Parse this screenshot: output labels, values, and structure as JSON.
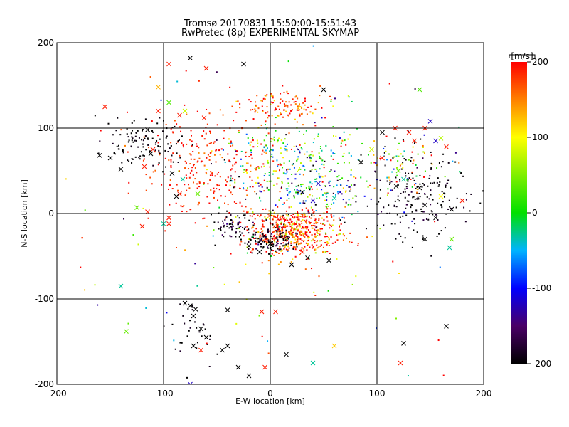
{
  "chart_data": {
    "type": "scatter",
    "title": "Tromsø 20170831 15:50:00-15:51:43",
    "subtitle": "RwPretec (8p) EXPERIMENTAL SKYMAP",
    "xlabel": "E-W location [km]",
    "ylabel": "N-S location [km]",
    "xlim": [
      -200,
      200
    ],
    "ylim": [
      -200,
      200
    ],
    "xticks": [
      "-200",
      "-100",
      "0",
      "100",
      "200"
    ],
    "yticks": [
      "-200",
      "-100",
      "0",
      "100",
      "200"
    ],
    "grid": true,
    "colorbar": {
      "unit_label": "[m/s]",
      "min": -200,
      "max": 200,
      "ticks": [
        "200",
        "100",
        "0",
        "-100",
        "-200"
      ],
      "colormap": "black-purple-blue-cyan-green-yellow-red"
    },
    "marker_types": [
      "dot",
      "x"
    ],
    "clusters": [
      {
        "x": 20,
        "y": -20,
        "sx": 22,
        "sy": 14,
        "n": 520,
        "v": 180,
        "dv": 60
      },
      {
        "x": 0,
        "y": -30,
        "sx": 14,
        "sy": 8,
        "n": 120,
        "v": -200,
        "dv": 25
      },
      {
        "x": -35,
        "y": -15,
        "sx": 10,
        "sy": 8,
        "n": 60,
        "v": -190,
        "dv": 30
      },
      {
        "x": 10,
        "y": 125,
        "sx": 20,
        "sy": 10,
        "n": 130,
        "v": 175,
        "dv": 40
      },
      {
        "x": -60,
        "y": 60,
        "sx": 30,
        "sy": 30,
        "n": 260,
        "v": 190,
        "dv": 20
      },
      {
        "x": 20,
        "y": 60,
        "sx": 30,
        "sy": 25,
        "n": 230,
        "v": 20,
        "dv": 90
      },
      {
        "x": 50,
        "y": 25,
        "sx": 30,
        "sy": 20,
        "n": 150,
        "v": -60,
        "dv": 120
      },
      {
        "x": 140,
        "y": 20,
        "sx": 25,
        "sy": 25,
        "n": 190,
        "v": -200,
        "dv": 20
      },
      {
        "x": 120,
        "y": 60,
        "sx": 25,
        "sy": 20,
        "n": 80,
        "v": 40,
        "dv": 150
      },
      {
        "x": -125,
        "y": 85,
        "sx": 20,
        "sy": 15,
        "n": 110,
        "v": -200,
        "dv": 10
      },
      {
        "x": -70,
        "y": -130,
        "sx": 12,
        "sy": 20,
        "n": 35,
        "v": -200,
        "dv": 10
      },
      {
        "x": 0,
        "y": -5,
        "sx": 90,
        "sy": 90,
        "n": 160,
        "v": 60,
        "dv": 160
      }
    ],
    "x_markers": [
      {
        "x": -155,
        "y": 125,
        "v": 190
      },
      {
        "x": -105,
        "y": 148,
        "v": 130
      },
      {
        "x": -95,
        "y": 175,
        "v": 190
      },
      {
        "x": -75,
        "y": 182,
        "v": -200
      },
      {
        "x": -60,
        "y": 170,
        "v": 190
      },
      {
        "x": -95,
        "y": 130,
        "v": 30
      },
      {
        "x": -25,
        "y": 175,
        "v": -200
      },
      {
        "x": 50,
        "y": 145,
        "v": -200
      },
      {
        "x": -150,
        "y": 65,
        "v": -200
      },
      {
        "x": -160,
        "y": 68,
        "v": -200
      },
      {
        "x": -140,
        "y": 52,
        "v": -200
      },
      {
        "x": -115,
        "y": 98,
        "v": -200
      },
      {
        "x": -112,
        "y": 70,
        "v": -200
      },
      {
        "x": -110,
        "y": 75,
        "v": 190
      },
      {
        "x": -118,
        "y": 55,
        "v": 190
      },
      {
        "x": -92,
        "y": 47,
        "v": -200
      },
      {
        "x": -85,
        "y": 23,
        "v": 190
      },
      {
        "x": -68,
        "y": 23,
        "v": 40
      },
      {
        "x": -88,
        "y": 20,
        "v": -200
      },
      {
        "x": -125,
        "y": 7,
        "v": 40
      },
      {
        "x": -115,
        "y": 2,
        "v": 190
      },
      {
        "x": -95,
        "y": -5,
        "v": 190
      },
      {
        "x": -95,
        "y": -12,
        "v": 190
      },
      {
        "x": -120,
        "y": -15,
        "v": 190
      },
      {
        "x": -140,
        "y": -85,
        "v": -30
      },
      {
        "x": -135,
        "y": -138,
        "v": 40
      },
      {
        "x": -100,
        "y": -12,
        "v": -30
      },
      {
        "x": -82,
        "y": 40,
        "v": -30
      },
      {
        "x": -105,
        "y": 120,
        "v": 190
      },
      {
        "x": -80,
        "y": 120,
        "v": 80
      },
      {
        "x": -85,
        "y": 115,
        "v": 190
      },
      {
        "x": -62,
        "y": 112,
        "v": 190
      },
      {
        "x": -80,
        "y": -105,
        "v": -200
      },
      {
        "x": -75,
        "y": -108,
        "v": -200
      },
      {
        "x": -70,
        "y": -112,
        "v": -200
      },
      {
        "x": -72,
        "y": -120,
        "v": -200
      },
      {
        "x": -65,
        "y": -135,
        "v": -200
      },
      {
        "x": -60,
        "y": -145,
        "v": -200
      },
      {
        "x": -72,
        "y": -155,
        "v": -200
      },
      {
        "x": -45,
        "y": -160,
        "v": -200
      },
      {
        "x": -40,
        "y": -155,
        "v": -200
      },
      {
        "x": -30,
        "y": -180,
        "v": -200
      },
      {
        "x": -20,
        "y": -190,
        "v": -200
      },
      {
        "x": -40,
        "y": -113,
        "v": -200
      },
      {
        "x": -65,
        "y": -160,
        "v": 190
      },
      {
        "x": -75,
        "y": -200,
        "v": -120
      },
      {
        "x": -5,
        "y": -180,
        "v": 190
      },
      {
        "x": 15,
        "y": -165,
        "v": -200
      },
      {
        "x": 40,
        "y": -175,
        "v": -30
      },
      {
        "x": 60,
        "y": -155,
        "v": 120
      },
      {
        "x": 122,
        "y": -175,
        "v": 190
      },
      {
        "x": 125,
        "y": -152,
        "v": -200
      },
      {
        "x": 165,
        "y": -132,
        "v": -200
      },
      {
        "x": -8,
        "y": -115,
        "v": 190
      },
      {
        "x": 5,
        "y": -115,
        "v": 190
      },
      {
        "x": 180,
        "y": 15,
        "v": 190
      },
      {
        "x": 170,
        "y": 5,
        "v": -200
      },
      {
        "x": 155,
        "y": -5,
        "v": -200
      },
      {
        "x": 170,
        "y": -30,
        "v": 40
      },
      {
        "x": 168,
        "y": -40,
        "v": -30
      },
      {
        "x": 145,
        "y": -30,
        "v": -200
      },
      {
        "x": 160,
        "y": 20,
        "v": 100
      },
      {
        "x": 140,
        "y": 145,
        "v": 30
      },
      {
        "x": 150,
        "y": 108,
        "v": -120
      },
      {
        "x": 145,
        "y": 100,
        "v": 190
      },
      {
        "x": 160,
        "y": 88,
        "v": 70
      },
      {
        "x": 165,
        "y": 78,
        "v": 190
      },
      {
        "x": 155,
        "y": 85,
        "v": -120
      },
      {
        "x": 135,
        "y": 85,
        "v": 190
      },
      {
        "x": 130,
        "y": 95,
        "v": 190
      },
      {
        "x": 117,
        "y": 100,
        "v": 190
      },
      {
        "x": 105,
        "y": 95,
        "v": -200
      },
      {
        "x": 105,
        "y": 65,
        "v": 190
      },
      {
        "x": 95,
        "y": 75,
        "v": 80
      },
      {
        "x": 85,
        "y": 60,
        "v": -200
      },
      {
        "x": 120,
        "y": 50,
        "v": 40
      },
      {
        "x": 125,
        "y": 40,
        "v": -30
      },
      {
        "x": 118,
        "y": 32,
        "v": -200
      },
      {
        "x": 140,
        "y": 30,
        "v": -200
      },
      {
        "x": 145,
        "y": 10,
        "v": -200
      },
      {
        "x": 30,
        "y": 25,
        "v": -200
      },
      {
        "x": 45,
        "y": 35,
        "v": -120
      },
      {
        "x": 60,
        "y": 18,
        "v": -30
      },
      {
        "x": 40,
        "y": 15,
        "v": -120
      },
      {
        "x": 55,
        "y": -55,
        "v": -200
      },
      {
        "x": 35,
        "y": -52,
        "v": -200
      },
      {
        "x": -10,
        "y": -45,
        "v": -200
      },
      {
        "x": 30,
        "y": -45,
        "v": 190
      },
      {
        "x": 20,
        "y": -60,
        "v": -200
      },
      {
        "x": 0,
        "y": -35,
        "v": -200
      },
      {
        "x": -20,
        "y": -38,
        "v": -200
      }
    ]
  }
}
